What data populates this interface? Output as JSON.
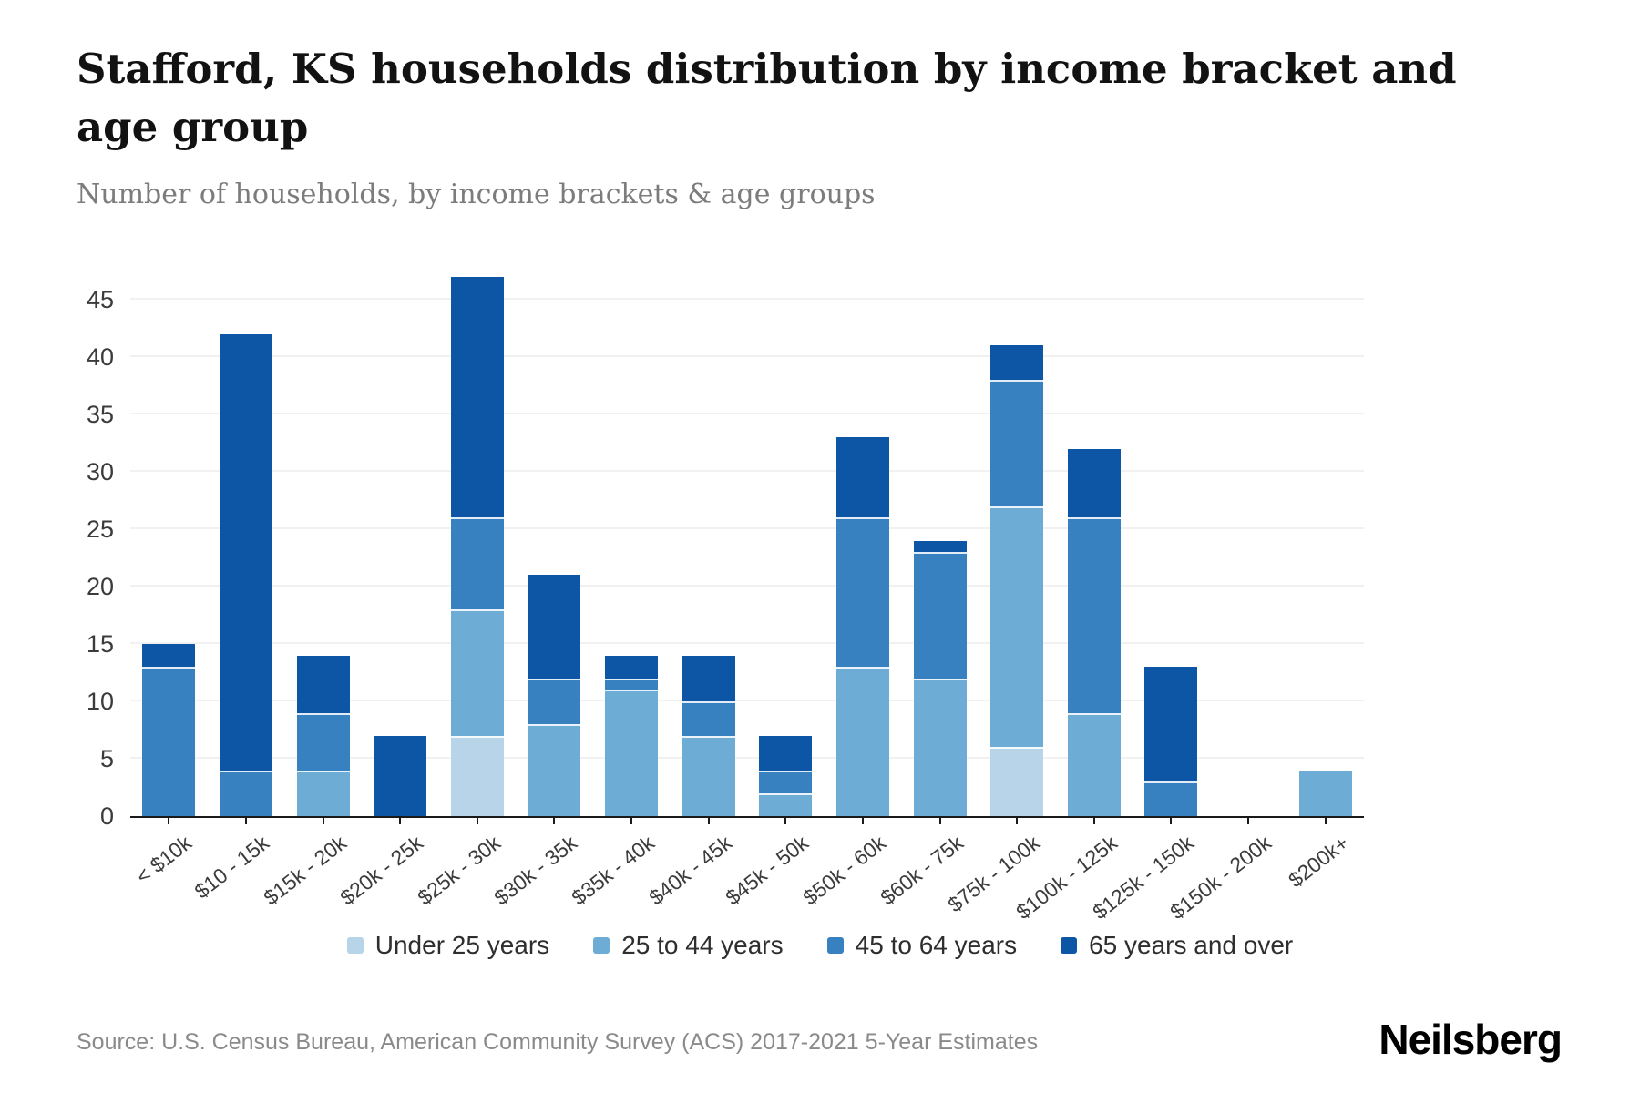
{
  "header": {
    "title": "Stafford, KS households distribution by income bracket and age group",
    "subtitle": "Number of households, by income brackets & age groups"
  },
  "chart_data": {
    "type": "bar",
    "stacked": true,
    "title": "Stafford, KS households distribution by income bracket and age group",
    "xlabel": "",
    "ylabel": "Number of households",
    "ylim": [
      0,
      47
    ],
    "yticks": [
      0,
      5,
      10,
      15,
      20,
      25,
      30,
      35,
      40,
      45
    ],
    "grid": "horizontal",
    "legend_position": "bottom",
    "categories": [
      "< $10k",
      "$10 - 15k",
      "$15k - 20k",
      "$20k - 25k",
      "$25k - 30k",
      "$30k - 35k",
      "$35k - 40k",
      "$40k - 45k",
      "$45k - 50k",
      "$50k - 60k",
      "$60k - 75k",
      "$75k - 100k",
      "$100k - 125k",
      "$125k - 150k",
      "$150k - 200k",
      "$200k+"
    ],
    "series": [
      {
        "name": "Under 25 years",
        "color": "#b7d4e8",
        "values": [
          0,
          0,
          0,
          0,
          7,
          0,
          0,
          0,
          0,
          0,
          0,
          6,
          0,
          0,
          0,
          0
        ]
      },
      {
        "name": "25 to 44 years",
        "color": "#6dacd5",
        "values": [
          0,
          0,
          4,
          0,
          11,
          8,
          11,
          7,
          2,
          13,
          12,
          21,
          9,
          0,
          0,
          4
        ]
      },
      {
        "name": "45 to 64 years",
        "color": "#3781c1",
        "values": [
          13,
          4,
          5,
          0,
          8,
          4,
          1,
          3,
          2,
          13,
          11,
          11,
          17,
          3,
          0,
          0
        ]
      },
      {
        "name": "65 years and over",
        "color": "#0d56a5",
        "values": [
          2,
          38,
          5,
          7,
          21,
          9,
          2,
          4,
          3,
          7,
          1,
          3,
          6,
          10,
          0,
          0
        ]
      }
    ],
    "bar_totals": [
      15,
      42,
      14,
      7,
      47,
      21,
      14,
      14,
      7,
      33,
      24,
      41,
      32,
      13,
      0,
      4
    ]
  },
  "footer": {
    "source": "Source: U.S. Census Bureau, American Community Survey (ACS) 2017-2021 5-Year Estimates",
    "brand": "Neilsberg"
  }
}
